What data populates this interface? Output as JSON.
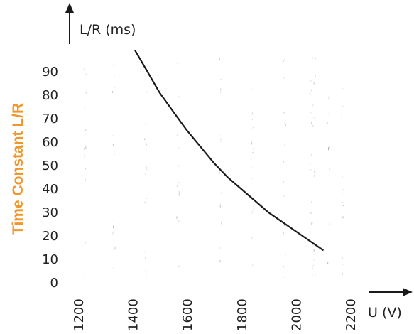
{
  "chart_data": {
    "type": "line",
    "ylabel_side": "Time Constant L/R",
    "ylabel": "L/R (ms)",
    "xlabel": "U (V)",
    "x_ticks": [
      "1200",
      "1400",
      "1600",
      "1800",
      "2000",
      "2200"
    ],
    "y_ticks": [
      "0",
      "10",
      "20",
      "30",
      "40",
      "50",
      "60",
      "70",
      "80",
      "90"
    ],
    "xlim": [
      1200,
      2200
    ],
    "ylim": [
      0,
      90
    ],
    "grid": false,
    "series": [
      {
        "x": [
          1410,
          1450,
          1500,
          1550,
          1600,
          1650,
          1700,
          1750,
          1800,
          1850,
          1900,
          1950,
          2000,
          2050,
          2100
        ],
        "y": [
          99,
          91,
          81,
          73,
          65,
          58,
          51,
          45,
          40,
          35,
          30,
          26,
          22,
          18,
          14
        ]
      }
    ],
    "colors": {
      "curve": "#1a1a1a",
      "side_title": "#f2962c",
      "axes": "#1a1a1a",
      "text": "#222222"
    }
  }
}
